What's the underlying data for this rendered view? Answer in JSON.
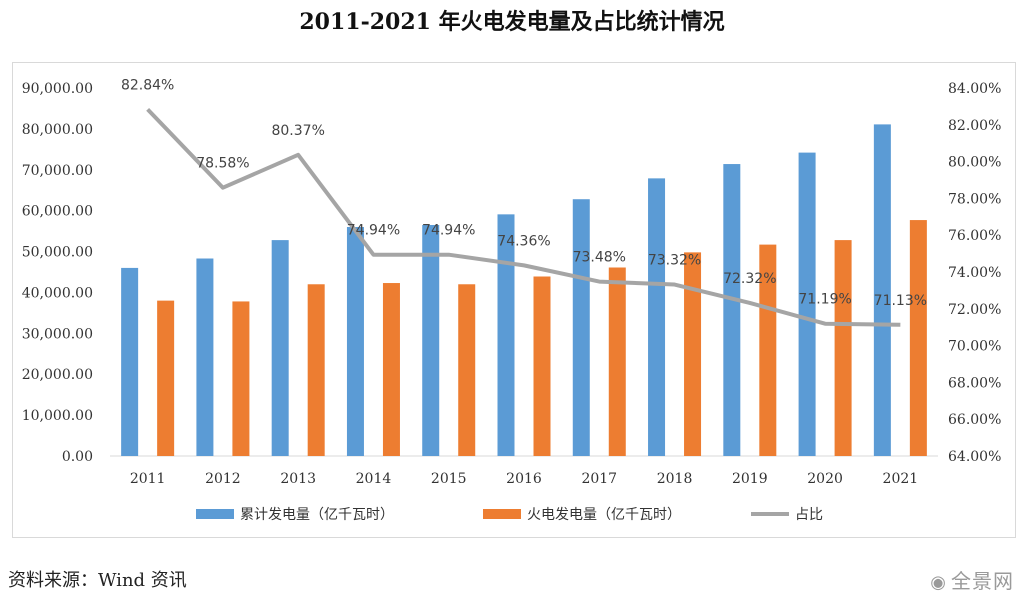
{
  "chart_data": {
    "type": "bar",
    "title": "2011-2021 年火电发电量及占比统计情况",
    "categories": [
      "2011",
      "2012",
      "2013",
      "2014",
      "2015",
      "2016",
      "2017",
      "2018",
      "2019",
      "2020",
      "2021"
    ],
    "series": [
      {
        "name": "累计发电量（亿千瓦时）",
        "kind": "bar",
        "axis": "left",
        "color": "#5b9bd5",
        "values": [
          46000,
          48300,
          52800,
          56000,
          56500,
          59100,
          62800,
          67900,
          71400,
          74200,
          81100
        ]
      },
      {
        "name": "火电发电量（亿千瓦时）",
        "kind": "bar",
        "axis": "left",
        "color": "#ed7d31",
        "values": [
          38000,
          37800,
          42000,
          42300,
          42000,
          43900,
          46100,
          49800,
          51700,
          52800,
          57700
        ]
      },
      {
        "name": "占比",
        "kind": "line",
        "axis": "right",
        "color": "#a5a5a5",
        "values": [
          82.84,
          78.58,
          80.37,
          74.94,
          74.94,
          74.36,
          73.48,
          73.32,
          72.32,
          71.19,
          71.13
        ],
        "labels": [
          "82.84%",
          "78.58%",
          "80.37%",
          "74.94%",
          "74.94%",
          "74.36%",
          "73.48%",
          "73.32%",
          "72.32%",
          "71.19%",
          "71.13%"
        ]
      }
    ],
    "left_axis": {
      "ylim": [
        0,
        90000
      ],
      "ticks": [
        "0.00",
        "10,000.00",
        "20,000.00",
        "30,000.00",
        "40,000.00",
        "50,000.00",
        "60,000.00",
        "70,000.00",
        "80,000.00",
        "90,000.00"
      ]
    },
    "right_axis": {
      "ylim": [
        64,
        84
      ],
      "ticks": [
        "64.00%",
        "66.00%",
        "68.00%",
        "70.00%",
        "72.00%",
        "74.00%",
        "76.00%",
        "78.00%",
        "80.00%",
        "82.00%",
        "84.00%"
      ]
    },
    "grid": false,
    "legend_position": "bottom"
  },
  "source": "资料来源：Wind 资讯",
  "watermark": "全景网"
}
